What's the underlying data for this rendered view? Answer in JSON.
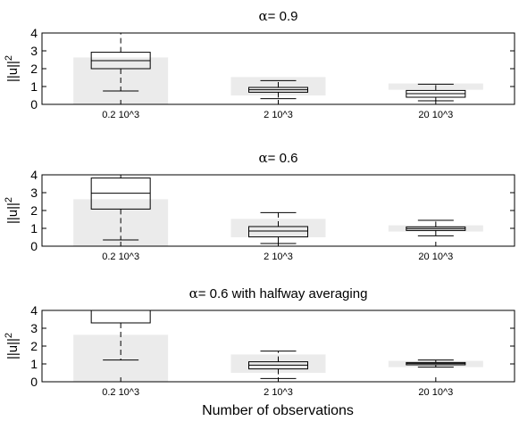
{
  "figure": {
    "xlabel": "Number of observations"
  },
  "chart_data": [
    {
      "type": "box",
      "title_symbol": "α",
      "title_rest": "= 0.9",
      "ylabel": "||u||",
      "ylabel_sup": "2",
      "ylim": [
        0,
        4
      ],
      "yticks": [
        "0",
        "1",
        "2",
        "3",
        "4"
      ],
      "categories": [
        "0.2 10^3",
        "2 10^3",
        "20 10^3"
      ],
      "reference_bands": [
        {
          "low": 0,
          "high": 2.63
        },
        {
          "low": 0.5,
          "high": 1.53
        },
        {
          "low": 0.82,
          "high": 1.17
        }
      ],
      "boxes": [
        {
          "whisker_low": 0.75,
          "q1": 2.0,
          "median": 2.45,
          "q3": 2.92,
          "whisker_high": 4.0
        },
        {
          "whisker_low": 0.32,
          "q1": 0.68,
          "median": 0.82,
          "q3": 0.95,
          "whisker_high": 1.33
        },
        {
          "whisker_low": 0.2,
          "q1": 0.4,
          "median": 0.6,
          "q3": 0.78,
          "whisker_high": 1.13
        }
      ]
    },
    {
      "type": "box",
      "title_symbol": "α",
      "title_rest": "= 0.6",
      "ylabel": "||u||",
      "ylabel_sup": "2",
      "ylim": [
        0,
        4
      ],
      "yticks": [
        "0",
        "1",
        "2",
        "3",
        "4"
      ],
      "categories": [
        "0.2 10^3",
        "2 10^3",
        "20 10^3"
      ],
      "reference_bands": [
        {
          "low": 0,
          "high": 2.63
        },
        {
          "low": 0.5,
          "high": 1.53
        },
        {
          "low": 0.82,
          "high": 1.17
        }
      ],
      "boxes": [
        {
          "whisker_low": 0.35,
          "q1": 2.08,
          "median": 2.97,
          "q3": 3.82,
          "whisker_high": 4.0
        },
        {
          "whisker_low": 0.15,
          "q1": 0.52,
          "median": 0.85,
          "q3": 1.1,
          "whisker_high": 1.88
        },
        {
          "whisker_low": 0.58,
          "q1": 0.88,
          "median": 0.98,
          "q3": 1.08,
          "whisker_high": 1.45
        }
      ]
    },
    {
      "type": "box",
      "title_symbol": "α",
      "title_rest": "= 0.6 with halfway averaging",
      "ylabel": "||u||",
      "ylabel_sup": "2",
      "ylim": [
        0,
        4
      ],
      "yticks": [
        "0",
        "1",
        "2",
        "3",
        "4"
      ],
      "categories": [
        "0.2 10^3",
        "2 10^3",
        "20 10^3"
      ],
      "reference_bands": [
        {
          "low": 0,
          "high": 2.63
        },
        {
          "low": 0.5,
          "high": 1.53
        },
        {
          "low": 0.82,
          "high": 1.17
        }
      ],
      "boxes": [
        {
          "whisker_low": 1.22,
          "q1": 3.3,
          "median": 4.0,
          "q3": 4.0,
          "whisker_high": 4.0
        },
        {
          "whisker_low": 0.18,
          "q1": 0.72,
          "median": 0.93,
          "q3": 1.12,
          "whisker_high": 1.72
        },
        {
          "whisker_low": 0.82,
          "q1": 0.95,
          "median": 1.02,
          "q3": 1.08,
          "whisker_high": 1.22
        }
      ]
    }
  ]
}
